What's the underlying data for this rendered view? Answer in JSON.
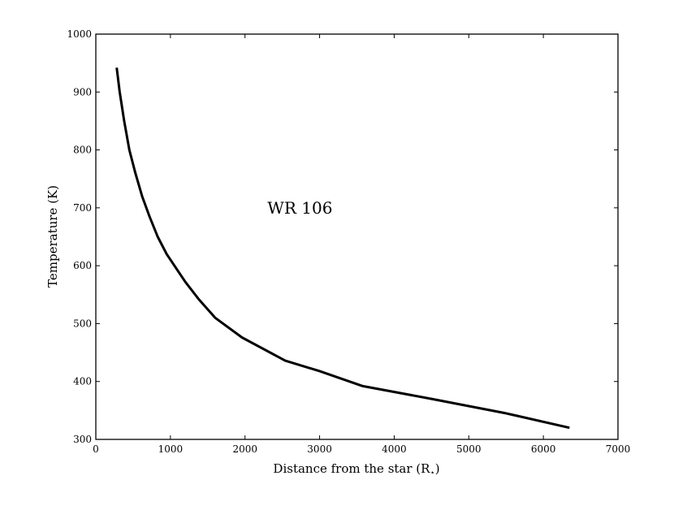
{
  "chart_data": {
    "type": "line",
    "title": "",
    "xlabel": "Distance from the star (R",
    "xlabel_subscript": "⋆",
    "xlabel_suffix": ")",
    "ylabel": "Temperature (K)",
    "xlim": [
      0,
      7000
    ],
    "ylim": [
      300,
      1000
    ],
    "xticks": [
      0,
      1000,
      2000,
      3000,
      4000,
      5000,
      6000,
      7000
    ],
    "yticks": [
      300,
      400,
      500,
      600,
      700,
      800,
      900,
      1000
    ],
    "grid": false,
    "line_color": "#000000",
    "annotations": [
      {
        "text": "WR 106",
        "x": 2300,
        "y": 700
      }
    ],
    "series": [
      {
        "x": [
          280,
          320,
          380,
          450,
          530,
          620,
          720,
          830,
          950,
          1080,
          1200,
          1380,
          1600,
          1960,
          2540,
          3000,
          3580,
          4500,
          5500,
          6350
        ],
        "y": [
          942,
          900,
          850,
          800,
          760,
          720,
          685,
          650,
          620,
          595,
          572,
          542,
          510,
          476,
          436,
          418,
          392,
          370,
          345,
          320
        ]
      }
    ]
  }
}
